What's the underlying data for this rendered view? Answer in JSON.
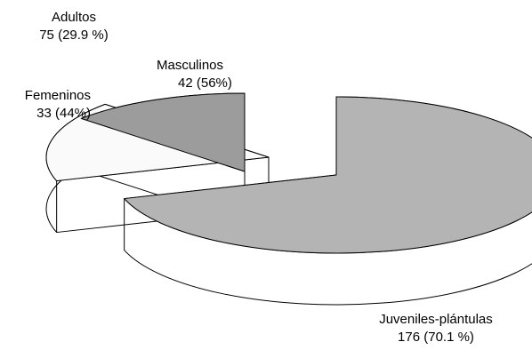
{
  "chart_data": {
    "type": "pie",
    "style": "3d-exploded",
    "slices": [
      {
        "name": "Juveniles-plántulas",
        "value": 176,
        "label_lines": [
          "Juveniles-plántulas",
          "176 (70.1 %)"
        ],
        "color_top": "#b4b4b4",
        "color_side": "#1a1a1a"
      },
      {
        "name": "Masculinos",
        "value": 42,
        "label_lines": [
          "Masculinos",
          "42 (56%)"
        ],
        "color_top": "#fafafa",
        "color_side": "#777777"
      },
      {
        "name": "Femeninos",
        "value": 33,
        "label_lines": [
          "Femeninos",
          "33 (44%)"
        ],
        "color_top": "#9c9c9c",
        "color_side": "#000000"
      }
    ],
    "group_label": {
      "name": "Adultos",
      "lines": [
        "Adultos",
        "75 (29.9 %)"
      ]
    }
  }
}
